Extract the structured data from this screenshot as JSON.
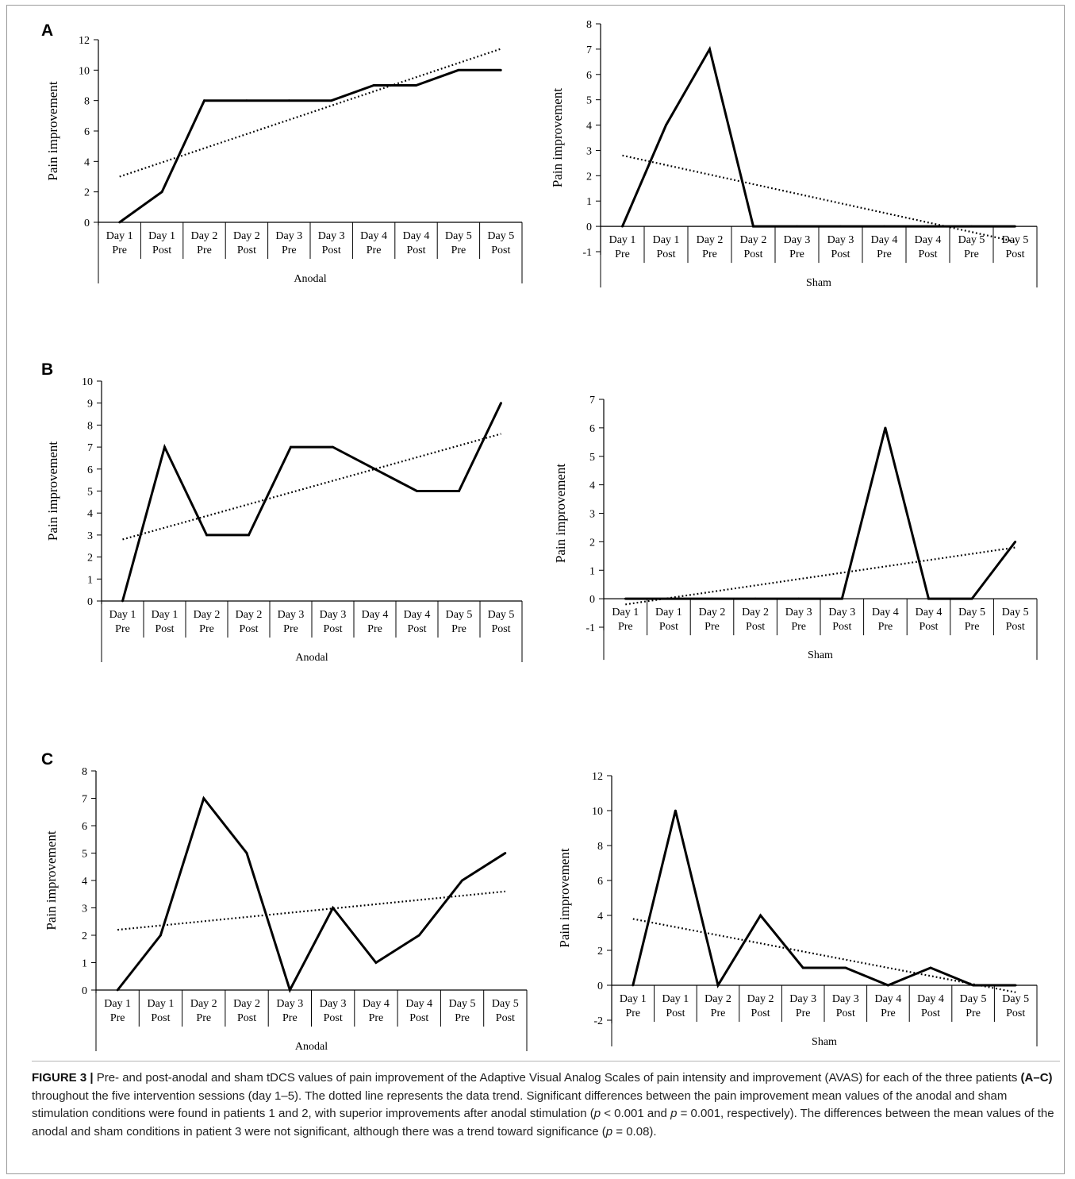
{
  "panels": [
    {
      "letter": "A"
    },
    {
      "letter": "B"
    },
    {
      "letter": "C"
    }
  ],
  "chart_data": [
    {
      "panel": "A",
      "condition": "Anodal",
      "type": "line",
      "ylabel": "Pain improvement",
      "xgroup_label": "Anodal",
      "x_days": [
        "Day 1",
        "Day 1",
        "Day 2",
        "Day 2",
        "Day 3",
        "Day 3",
        "Day 4",
        "Day 4",
        "Day 5",
        "Day 5"
      ],
      "x_phases": [
        "Pre",
        "Post",
        "Pre",
        "Post",
        "Pre",
        "Post",
        "Pre",
        "Post",
        "Pre",
        "Post"
      ],
      "y_ticks": [
        0,
        2,
        4,
        6,
        8,
        10,
        12
      ],
      "ylim": [
        0,
        12
      ],
      "values": [
        0,
        2,
        8,
        8,
        8,
        8,
        9,
        9,
        10,
        10
      ],
      "trend": [
        3.0,
        11.4
      ]
    },
    {
      "panel": "A",
      "condition": "Sham",
      "type": "line",
      "ylabel": "Pain improvement",
      "xgroup_label": "Sham",
      "x_days": [
        "Day 1",
        "Day 1",
        "Day 2",
        "Day 2",
        "Day 3",
        "Day 3",
        "Day 4",
        "Day 4",
        "Day 5",
        "Day 5"
      ],
      "x_phases": [
        "Pre",
        "Post",
        "Pre",
        "Post",
        "Pre",
        "Post",
        "Pre",
        "Post",
        "Pre",
        "Post"
      ],
      "y_ticks": [
        -1,
        0,
        1,
        2,
        3,
        4,
        5,
        6,
        7,
        8
      ],
      "ylim": [
        -1,
        8
      ],
      "values": [
        0,
        4,
        7,
        0,
        0,
        0,
        0,
        0,
        0,
        0
      ],
      "trend": [
        2.8,
        -0.6
      ]
    },
    {
      "panel": "B",
      "condition": "Anodal",
      "type": "line",
      "ylabel": "Pain improvement",
      "xgroup_label": "Anodal",
      "x_days": [
        "Day 1",
        "Day 1",
        "Day 2",
        "Day 2",
        "Day 3",
        "Day 3",
        "Day 4",
        "Day 4",
        "Day 5",
        "Day 5"
      ],
      "x_phases": [
        "Pre",
        "Post",
        "Pre",
        "Post",
        "Pre",
        "Post",
        "Pre",
        "Post",
        "Pre",
        "Post"
      ],
      "y_ticks": [
        0,
        1,
        2,
        3,
        4,
        5,
        6,
        7,
        8,
        9,
        10
      ],
      "ylim": [
        0,
        10
      ],
      "values": [
        0,
        7,
        3,
        3,
        7,
        7,
        6,
        5,
        5,
        9
      ],
      "trend": [
        2.8,
        7.6
      ]
    },
    {
      "panel": "B",
      "condition": "Sham",
      "type": "line",
      "ylabel": "Pain improvement",
      "xgroup_label": "Sham",
      "x_days": [
        "Day 1",
        "Day 1",
        "Day 2",
        "Day 2",
        "Day 3",
        "Day 3",
        "Day 4",
        "Day 4",
        "Day 5",
        "Day 5"
      ],
      "x_phases": [
        "Pre",
        "Post",
        "Pre",
        "Post",
        "Pre",
        "Post",
        "Pre",
        "Post",
        "Pre",
        "Post"
      ],
      "y_ticks": [
        -1,
        0,
        1,
        2,
        3,
        4,
        5,
        6,
        7
      ],
      "ylim": [
        -1,
        7
      ],
      "values": [
        0,
        0,
        0,
        0,
        0,
        0,
        6,
        0,
        0,
        2
      ],
      "trend": [
        -0.2,
        1.8
      ]
    },
    {
      "panel": "C",
      "condition": "Anodal",
      "type": "line",
      "ylabel": "Pain improvement",
      "xgroup_label": "Anodal",
      "x_days": [
        "Day 1",
        "Day 1",
        "Day 2",
        "Day 2",
        "Day 3",
        "Day 3",
        "Day 4",
        "Day 4",
        "Day 5",
        "Day 5"
      ],
      "x_phases": [
        "Pre",
        "Post",
        "Pre",
        "Post",
        "Pre",
        "Post",
        "Pre",
        "Post",
        "Pre",
        "Post"
      ],
      "y_ticks": [
        0,
        1,
        2,
        3,
        4,
        5,
        6,
        7,
        8
      ],
      "ylim": [
        0,
        8
      ],
      "values": [
        0,
        2,
        7,
        5,
        0,
        3,
        1,
        2,
        4,
        5
      ],
      "trend": [
        2.2,
        3.6
      ]
    },
    {
      "panel": "C",
      "condition": "Sham",
      "type": "line",
      "ylabel": "Pain improvement",
      "xgroup_label": "Sham",
      "x_days": [
        "Day 1",
        "Day 1",
        "Day 2",
        "Day 2",
        "Day 3",
        "Day 3",
        "Day 4",
        "Day 4",
        "Day 5",
        "Day 5"
      ],
      "x_phases": [
        "Pre",
        "Post",
        "Pre",
        "Post",
        "Pre",
        "Post",
        "Pre",
        "Post",
        "Pre",
        "Post"
      ],
      "y_ticks": [
        -2,
        0,
        2,
        4,
        6,
        8,
        10,
        12
      ],
      "ylim": [
        -2,
        12
      ],
      "values": [
        0,
        10,
        0,
        4,
        1,
        1,
        0,
        1,
        0,
        0
      ],
      "trend": [
        3.8,
        -0.4
      ]
    }
  ],
  "caption": {
    "label": "FIGURE 3 |",
    "part1": " Pre- and post-anodal and sham tDCS values of pain improvement of the Adaptive Visual Analog Scales of pain intensity and improvement (AVAS) for each of the three patients ",
    "patients_ref": "(A–C)",
    "part2": " throughout the five intervention sessions (day 1–5). The dotted line represents the data trend. Significant differences between the pain improvement mean values of the anodal and sham stimulation conditions were found in patients 1 and 2, with superior improvements after anodal stimulation (",
    "p_symbol_1": "p",
    "part3": " < 0.001 and ",
    "p_symbol_2": "p",
    "part4": " = 0.001, respectively). The differences between the mean values of the anodal and sham conditions in patient 3 were not significant, although there was a trend toward significance (",
    "p_symbol_3": "p",
    "part5": " = 0.08)."
  }
}
